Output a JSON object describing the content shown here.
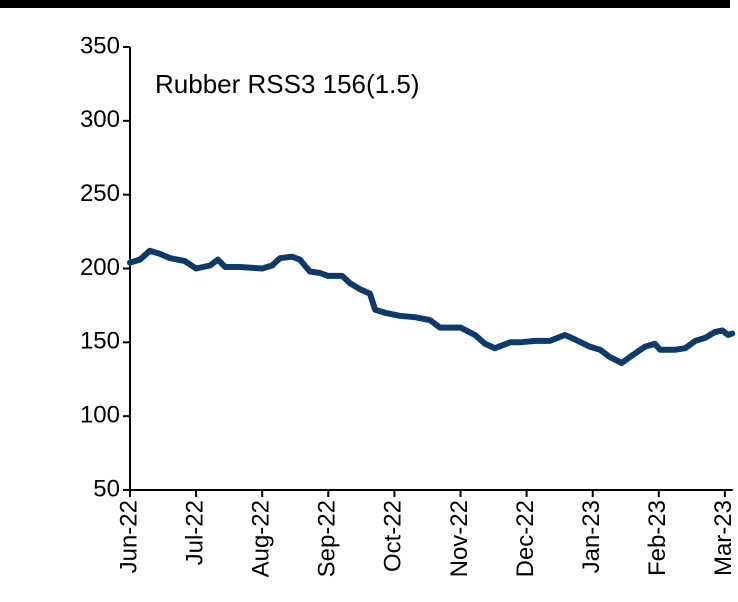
{
  "chart_data": {
    "type": "line",
    "title": "Rubber RSS3 156(1.5)",
    "x": [
      0,
      0.15,
      0.3,
      0.45,
      0.61,
      0.83,
      1.0,
      1.21,
      1.33,
      1.44,
      1.66,
      2.0,
      2.15,
      2.27,
      2.45,
      2.57,
      2.72,
      2.87,
      3.0,
      3.21,
      3.33,
      3.48,
      3.63,
      3.71,
      3.86,
      4.08,
      4.31,
      4.54,
      4.69,
      5.0,
      5.22,
      5.37,
      5.52,
      5.75,
      5.9,
      6.13,
      6.35,
      6.58,
      6.73,
      6.96,
      7.11,
      7.26,
      7.44,
      7.56,
      7.79,
      7.94,
      8.02,
      8.25,
      8.4,
      8.55,
      8.7,
      8.85,
      8.96,
      9.05,
      9.11
    ],
    "series": [
      {
        "name": "Rubber RSS3",
        "color": "#0d3a6b",
        "values": [
          204,
          206,
          212,
          210,
          207,
          205,
          200,
          202,
          206,
          201,
          201,
          200,
          202,
          207,
          208,
          206,
          198,
          197,
          195,
          195,
          190,
          186,
          183,
          172,
          170,
          168,
          167,
          165,
          160,
          160,
          155,
          149,
          146,
          150,
          150,
          151,
          151,
          155,
          152,
          147,
          145,
          140,
          136,
          140,
          147,
          149,
          145,
          145,
          146,
          151,
          153,
          157,
          158,
          155,
          156
        ]
      }
    ],
    "xlim": [
      0,
      9.12
    ],
    "xticks": [
      {
        "value": 0,
        "label": "Jun-22"
      },
      {
        "value": 1,
        "label": "Jul-22"
      },
      {
        "value": 2,
        "label": "Aug-22"
      },
      {
        "value": 3,
        "label": "Sep-22"
      },
      {
        "value": 4,
        "label": "Oct-22"
      },
      {
        "value": 5,
        "label": "Nov-22"
      },
      {
        "value": 6,
        "label": "Dec-22"
      },
      {
        "value": 7,
        "label": "Jan-23"
      },
      {
        "value": 8,
        "label": "Feb-23"
      },
      {
        "value": 9,
        "label": "Mar-23"
      }
    ],
    "ylim": [
      50,
      350
    ],
    "yticks": [
      50,
      100,
      150,
      200,
      250,
      300,
      350
    ],
    "grid": false
  }
}
